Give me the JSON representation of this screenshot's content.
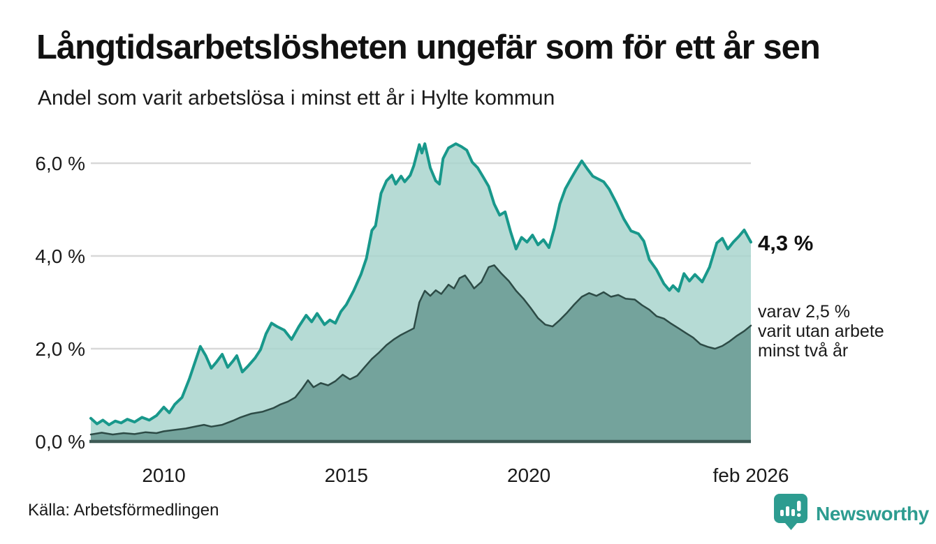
{
  "header": {
    "title": "Långtidsarbetslösheten ungefär som för ett år sen",
    "subtitle": "Andel som varit arbetslösa i minst ett år i Hylte kommun"
  },
  "annotations": {
    "latest_total": "4,3 %",
    "two_year_line1": "varav 2,5 %",
    "two_year_line2": "varit utan arbete",
    "two_year_line3": "minst två år"
  },
  "footer": {
    "source": "Källa: Arbetsförmedlingen",
    "brand": "Newsworthy"
  },
  "colors": {
    "total_line": "#18988b",
    "total_fill": "#a9d5ce",
    "two_year_line": "#2d4b46",
    "two_year_fill": "#6f9e97",
    "gridline": "#d8d8d8",
    "axis_line": "#3e5a55",
    "text": "#1a1a1a",
    "brand_teal": "#2d9c90"
  },
  "chart_data": {
    "type": "area",
    "title": "Långtidsarbetslösheten ungefär som för ett år sen",
    "subtitle": "Andel som varit arbetslösa i minst ett år i Hylte kommun",
    "unit": "%",
    "xlabel": "",
    "ylabel": "",
    "x_range": [
      2008,
      2026.083
    ],
    "ylim": [
      0,
      6.6
    ],
    "grid": true,
    "y_ticks": [
      {
        "label": "0,0 %",
        "value": 0
      },
      {
        "label": "2,0 %",
        "value": 2
      },
      {
        "label": "4,0 %",
        "value": 4
      },
      {
        "label": "6,0 %",
        "value": 6
      }
    ],
    "x_ticks": [
      {
        "label": "2010",
        "year": 2010
      },
      {
        "label": "2015",
        "year": 2015
      },
      {
        "label": "2020",
        "year": 2020
      },
      {
        "label": "feb 2026",
        "year": 2026.083
      }
    ],
    "series": [
      {
        "name": "Arbetslösa minst ett år",
        "end_value": 4.3,
        "end_label": "4,3 %",
        "points": [
          [
            2008.0,
            0.5
          ],
          [
            2008.17,
            0.38
          ],
          [
            2008.33,
            0.46
          ],
          [
            2008.5,
            0.36
          ],
          [
            2008.67,
            0.44
          ],
          [
            2008.83,
            0.4
          ],
          [
            2009.0,
            0.48
          ],
          [
            2009.2,
            0.42
          ],
          [
            2009.4,
            0.52
          ],
          [
            2009.6,
            0.46
          ],
          [
            2009.8,
            0.56
          ],
          [
            2010.0,
            0.74
          ],
          [
            2010.15,
            0.62
          ],
          [
            2010.3,
            0.8
          ],
          [
            2010.5,
            0.95
          ],
          [
            2010.7,
            1.35
          ],
          [
            2010.85,
            1.7
          ],
          [
            2011.0,
            2.05
          ],
          [
            2011.15,
            1.85
          ],
          [
            2011.3,
            1.58
          ],
          [
            2011.45,
            1.72
          ],
          [
            2011.6,
            1.88
          ],
          [
            2011.75,
            1.6
          ],
          [
            2011.9,
            1.74
          ],
          [
            2012.0,
            1.85
          ],
          [
            2012.15,
            1.5
          ],
          [
            2012.3,
            1.62
          ],
          [
            2012.5,
            1.8
          ],
          [
            2012.65,
            1.98
          ],
          [
            2012.8,
            2.32
          ],
          [
            2012.95,
            2.55
          ],
          [
            2013.1,
            2.48
          ],
          [
            2013.3,
            2.4
          ],
          [
            2013.5,
            2.2
          ],
          [
            2013.7,
            2.48
          ],
          [
            2013.9,
            2.72
          ],
          [
            2014.05,
            2.58
          ],
          [
            2014.2,
            2.76
          ],
          [
            2014.4,
            2.52
          ],
          [
            2014.55,
            2.62
          ],
          [
            2014.7,
            2.55
          ],
          [
            2014.85,
            2.8
          ],
          [
            2015.0,
            2.95
          ],
          [
            2015.2,
            3.25
          ],
          [
            2015.4,
            3.6
          ],
          [
            2015.55,
            3.95
          ],
          [
            2015.7,
            4.55
          ],
          [
            2015.8,
            4.65
          ],
          [
            2015.95,
            5.35
          ],
          [
            2016.1,
            5.62
          ],
          [
            2016.25,
            5.74
          ],
          [
            2016.35,
            5.55
          ],
          [
            2016.5,
            5.72
          ],
          [
            2016.6,
            5.6
          ],
          [
            2016.75,
            5.74
          ],
          [
            2016.85,
            5.95
          ],
          [
            2017.0,
            6.4
          ],
          [
            2017.07,
            6.22
          ],
          [
            2017.15,
            6.42
          ],
          [
            2017.3,
            5.9
          ],
          [
            2017.45,
            5.62
          ],
          [
            2017.55,
            5.55
          ],
          [
            2017.65,
            6.1
          ],
          [
            2017.8,
            6.33
          ],
          [
            2018.0,
            6.42
          ],
          [
            2018.15,
            6.36
          ],
          [
            2018.3,
            6.28
          ],
          [
            2018.45,
            6.02
          ],
          [
            2018.6,
            5.9
          ],
          [
            2018.75,
            5.7
          ],
          [
            2018.9,
            5.5
          ],
          [
            2019.05,
            5.12
          ],
          [
            2019.2,
            4.88
          ],
          [
            2019.35,
            4.95
          ],
          [
            2019.5,
            4.52
          ],
          [
            2019.65,
            4.15
          ],
          [
            2019.8,
            4.4
          ],
          [
            2019.95,
            4.3
          ],
          [
            2020.1,
            4.45
          ],
          [
            2020.25,
            4.24
          ],
          [
            2020.4,
            4.35
          ],
          [
            2020.55,
            4.18
          ],
          [
            2020.7,
            4.6
          ],
          [
            2020.85,
            5.12
          ],
          [
            2021.0,
            5.45
          ],
          [
            2021.15,
            5.66
          ],
          [
            2021.3,
            5.86
          ],
          [
            2021.45,
            6.05
          ],
          [
            2021.6,
            5.88
          ],
          [
            2021.75,
            5.72
          ],
          [
            2021.9,
            5.66
          ],
          [
            2022.05,
            5.6
          ],
          [
            2022.2,
            5.44
          ],
          [
            2022.4,
            5.14
          ],
          [
            2022.6,
            4.8
          ],
          [
            2022.8,
            4.54
          ],
          [
            2023.0,
            4.48
          ],
          [
            2023.15,
            4.32
          ],
          [
            2023.3,
            3.92
          ],
          [
            2023.5,
            3.7
          ],
          [
            2023.7,
            3.4
          ],
          [
            2023.85,
            3.26
          ],
          [
            2023.95,
            3.36
          ],
          [
            2024.1,
            3.24
          ],
          [
            2024.25,
            3.62
          ],
          [
            2024.4,
            3.46
          ],
          [
            2024.55,
            3.6
          ],
          [
            2024.75,
            3.44
          ],
          [
            2024.95,
            3.76
          ],
          [
            2025.15,
            4.28
          ],
          [
            2025.3,
            4.38
          ],
          [
            2025.45,
            4.15
          ],
          [
            2025.6,
            4.3
          ],
          [
            2025.75,
            4.42
          ],
          [
            2025.9,
            4.56
          ],
          [
            2026.083,
            4.3
          ]
        ]
      },
      {
        "name": "varav utan arbete minst två år",
        "end_value": 2.5,
        "end_label": "varav 2,5 % varit utan arbete minst två år",
        "points": [
          [
            2008.0,
            0.15
          ],
          [
            2008.3,
            0.19
          ],
          [
            2008.6,
            0.15
          ],
          [
            2008.9,
            0.18
          ],
          [
            2009.2,
            0.16
          ],
          [
            2009.5,
            0.2
          ],
          [
            2009.8,
            0.18
          ],
          [
            2010.0,
            0.22
          ],
          [
            2010.3,
            0.25
          ],
          [
            2010.6,
            0.28
          ],
          [
            2010.9,
            0.33
          ],
          [
            2011.1,
            0.36
          ],
          [
            2011.3,
            0.32
          ],
          [
            2011.6,
            0.36
          ],
          [
            2011.9,
            0.45
          ],
          [
            2012.1,
            0.52
          ],
          [
            2012.4,
            0.6
          ],
          [
            2012.7,
            0.64
          ],
          [
            2013.0,
            0.72
          ],
          [
            2013.2,
            0.8
          ],
          [
            2013.4,
            0.86
          ],
          [
            2013.6,
            0.95
          ],
          [
            2013.8,
            1.15
          ],
          [
            2013.95,
            1.32
          ],
          [
            2014.1,
            1.17
          ],
          [
            2014.3,
            1.26
          ],
          [
            2014.5,
            1.21
          ],
          [
            2014.7,
            1.3
          ],
          [
            2014.9,
            1.44
          ],
          [
            2015.1,
            1.34
          ],
          [
            2015.3,
            1.42
          ],
          [
            2015.5,
            1.6
          ],
          [
            2015.7,
            1.78
          ],
          [
            2015.9,
            1.92
          ],
          [
            2016.1,
            2.08
          ],
          [
            2016.3,
            2.2
          ],
          [
            2016.5,
            2.3
          ],
          [
            2016.7,
            2.38
          ],
          [
            2016.85,
            2.44
          ],
          [
            2017.0,
            3.0
          ],
          [
            2017.15,
            3.25
          ],
          [
            2017.3,
            3.14
          ],
          [
            2017.45,
            3.26
          ],
          [
            2017.6,
            3.18
          ],
          [
            2017.8,
            3.38
          ],
          [
            2017.95,
            3.3
          ],
          [
            2018.1,
            3.52
          ],
          [
            2018.25,
            3.58
          ],
          [
            2018.4,
            3.42
          ],
          [
            2018.5,
            3.3
          ],
          [
            2018.7,
            3.44
          ],
          [
            2018.9,
            3.76
          ],
          [
            2019.05,
            3.8
          ],
          [
            2019.25,
            3.62
          ],
          [
            2019.45,
            3.46
          ],
          [
            2019.65,
            3.25
          ],
          [
            2019.85,
            3.08
          ],
          [
            2020.05,
            2.88
          ],
          [
            2020.25,
            2.66
          ],
          [
            2020.45,
            2.52
          ],
          [
            2020.65,
            2.48
          ],
          [
            2020.85,
            2.62
          ],
          [
            2021.05,
            2.78
          ],
          [
            2021.25,
            2.96
          ],
          [
            2021.45,
            3.12
          ],
          [
            2021.65,
            3.2
          ],
          [
            2021.85,
            3.14
          ],
          [
            2022.05,
            3.22
          ],
          [
            2022.25,
            3.12
          ],
          [
            2022.45,
            3.16
          ],
          [
            2022.65,
            3.08
          ],
          [
            2022.9,
            3.06
          ],
          [
            2023.1,
            2.94
          ],
          [
            2023.3,
            2.84
          ],
          [
            2023.5,
            2.7
          ],
          [
            2023.7,
            2.65
          ],
          [
            2023.9,
            2.54
          ],
          [
            2024.1,
            2.44
          ],
          [
            2024.3,
            2.34
          ],
          [
            2024.5,
            2.24
          ],
          [
            2024.7,
            2.1
          ],
          [
            2024.9,
            2.04
          ],
          [
            2025.1,
            2.0
          ],
          [
            2025.3,
            2.06
          ],
          [
            2025.5,
            2.16
          ],
          [
            2025.7,
            2.28
          ],
          [
            2025.9,
            2.38
          ],
          [
            2026.083,
            2.5
          ]
        ]
      }
    ],
    "legend": "none",
    "source": "Källa: Arbetsförmedlingen"
  }
}
